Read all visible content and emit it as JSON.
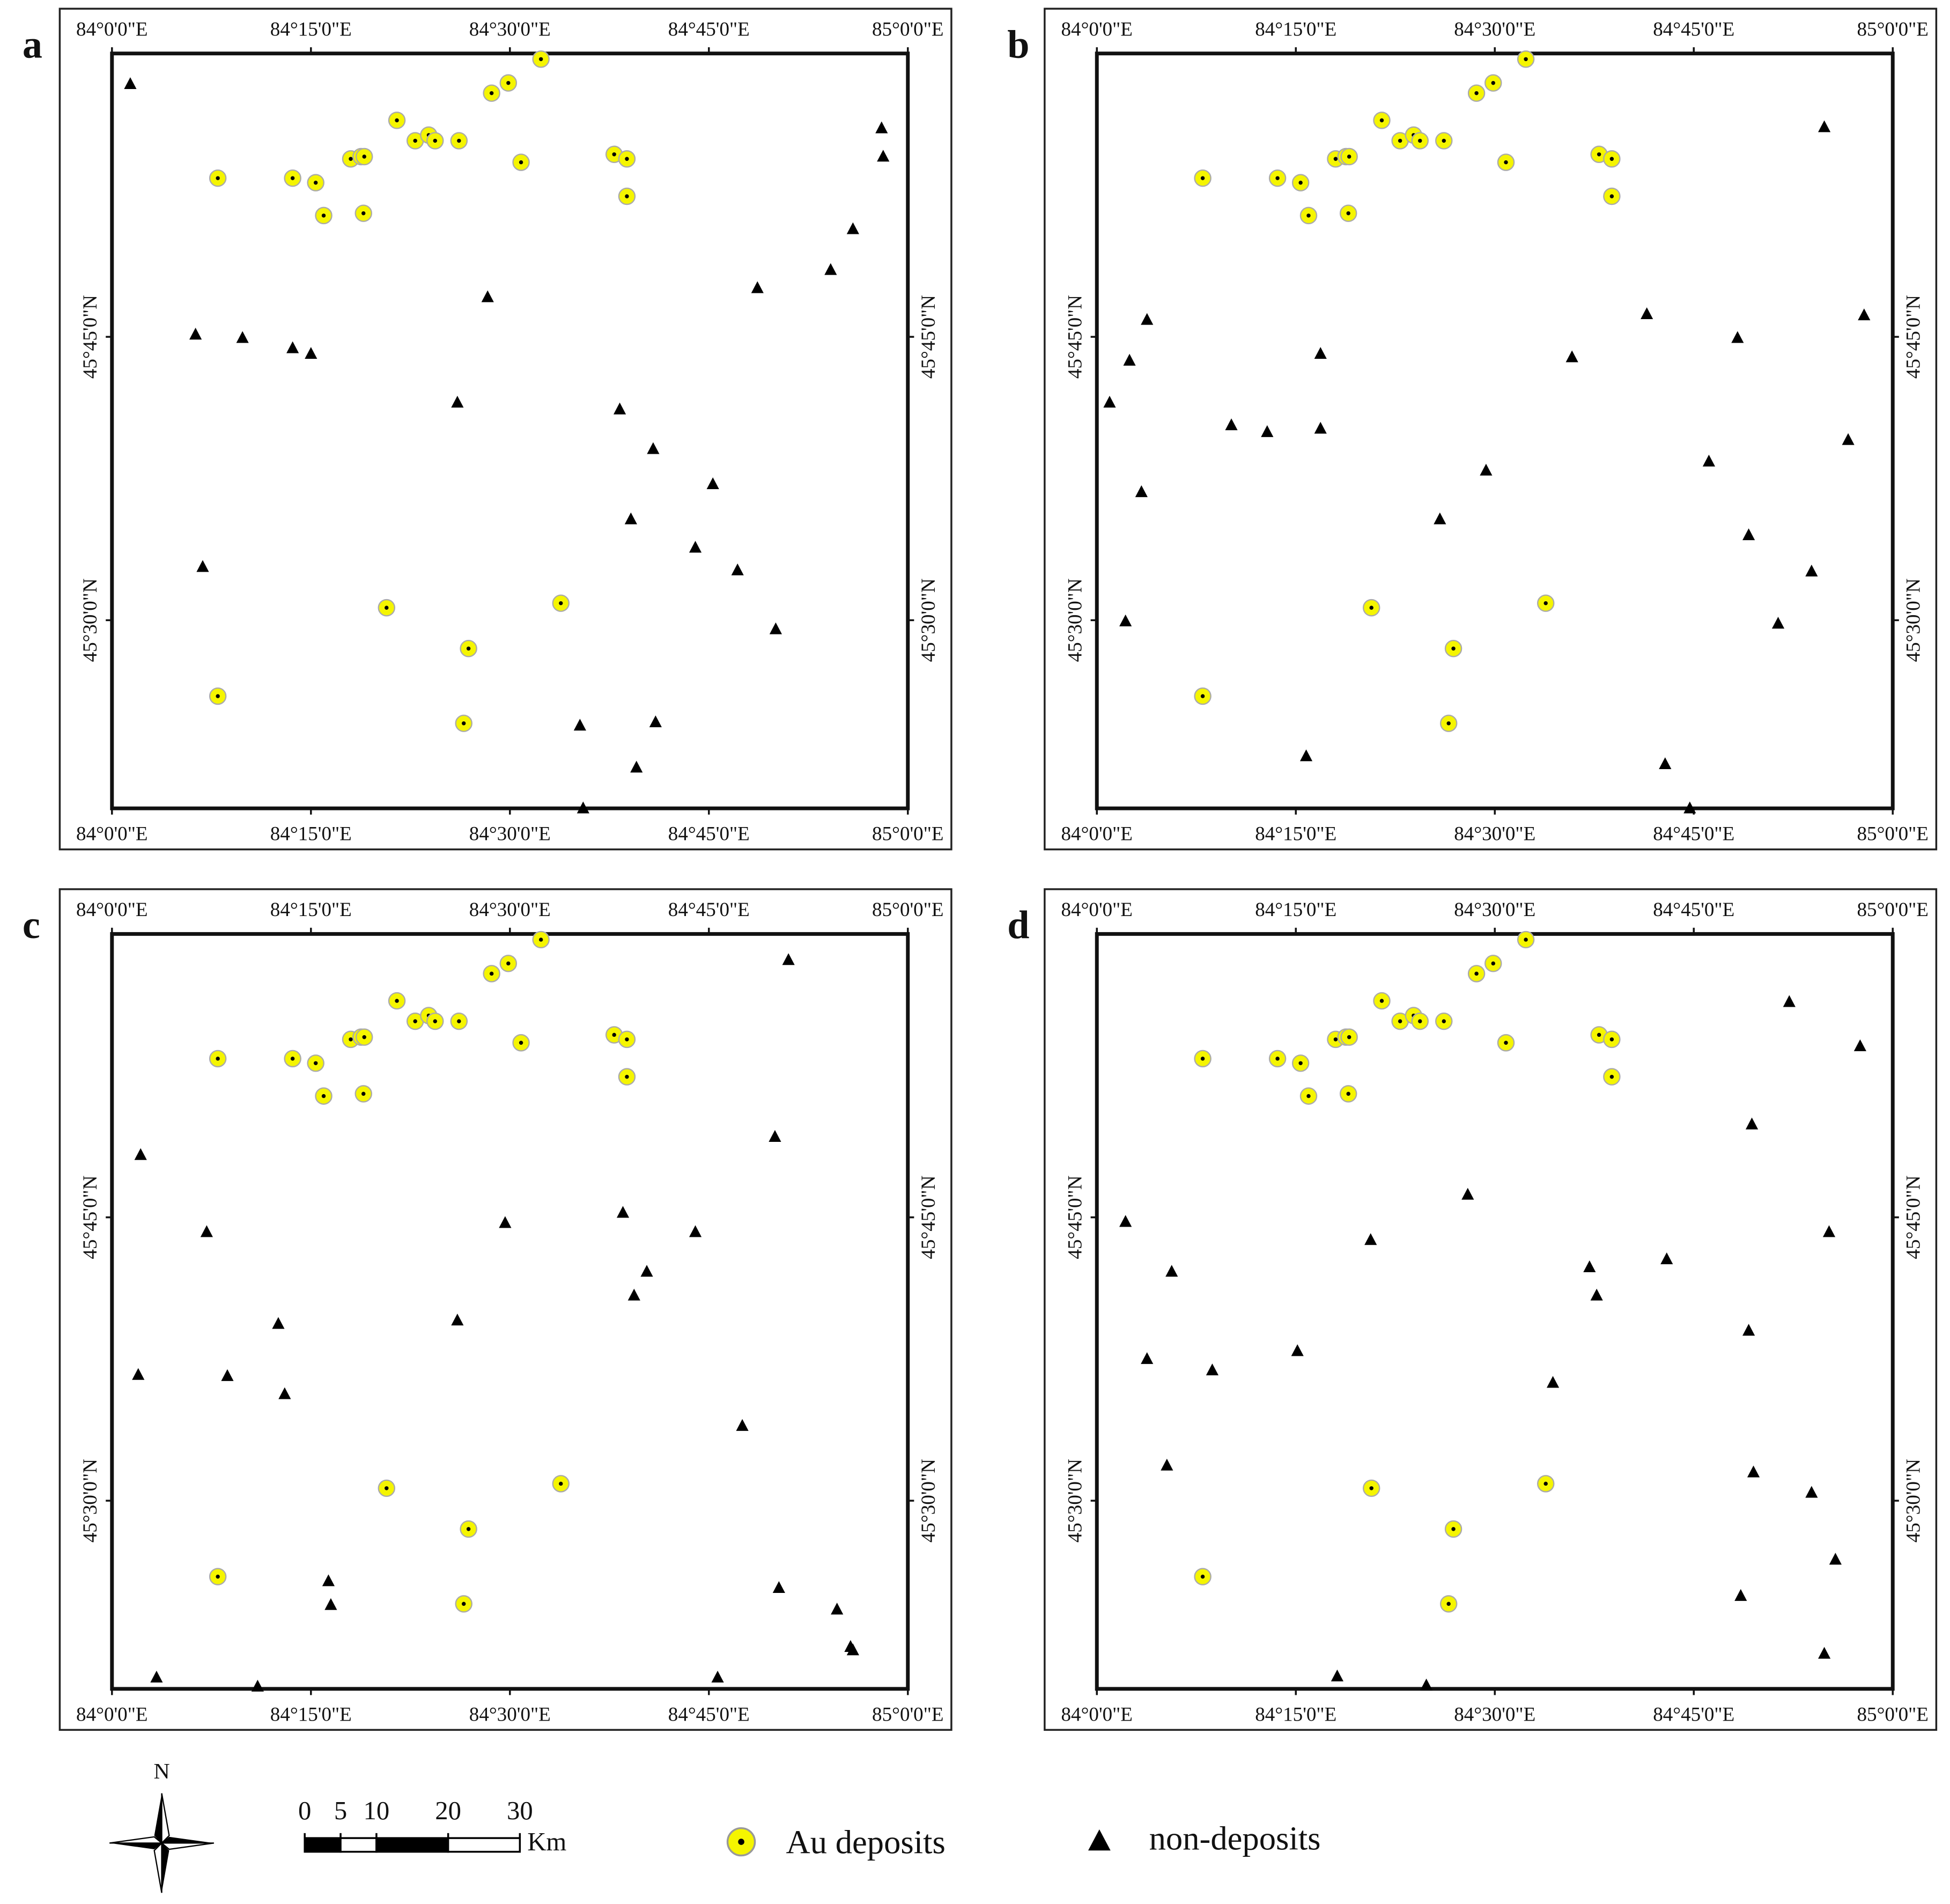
{
  "map": {
    "xlim": [
      84,
      85
    ],
    "ylim": [
      45.334,
      46.0
    ],
    "xticks": [
      {
        "value": 84,
        "label": "84°0'0\"E"
      },
      {
        "value": 84.25,
        "label": "84°15'0\"E"
      },
      {
        "value": 84.5,
        "label": "84°30'0\"E"
      },
      {
        "value": 84.75,
        "label": "84°45'0\"E"
      },
      {
        "value": 85,
        "label": "85°0'0\"E"
      }
    ],
    "yticks": [
      {
        "value": 45.75,
        "label": "45°45'0\"N"
      },
      {
        "value": 45.5,
        "label": "45°30'0\"N"
      }
    ]
  },
  "deposits": [
    [
      84.133,
      45.89
    ],
    [
      84.227,
      45.89
    ],
    [
      84.256,
      45.886
    ],
    [
      84.266,
      45.857
    ],
    [
      84.3,
      45.907
    ],
    [
      84.313,
      45.909
    ],
    [
      84.317,
      45.909
    ],
    [
      84.316,
      45.859
    ],
    [
      84.358,
      45.941
    ],
    [
      84.381,
      45.923
    ],
    [
      84.398,
      45.928
    ],
    [
      84.406,
      45.923
    ],
    [
      84.436,
      45.923
    ],
    [
      84.477,
      45.965
    ],
    [
      84.498,
      45.974
    ],
    [
      84.539,
      45.995
    ],
    [
      84.514,
      45.904
    ],
    [
      84.631,
      45.911
    ],
    [
      84.647,
      45.907
    ],
    [
      84.647,
      45.874
    ],
    [
      84.345,
      45.511
    ],
    [
      84.564,
      45.515
    ],
    [
      84.448,
      45.475
    ],
    [
      84.133,
      45.433
    ],
    [
      84.442,
      45.409
    ]
  ],
  "panels": [
    {
      "label": "a",
      "non_deposits": [
        [
          84.023,
          45.973
        ],
        [
          84.105,
          45.752
        ],
        [
          84.164,
          45.749
        ],
        [
          84.227,
          45.74
        ],
        [
          84.25,
          45.735
        ],
        [
          84.472,
          45.785
        ],
        [
          84.434,
          45.692
        ],
        [
          84.638,
          45.686
        ],
        [
          84.68,
          45.651
        ],
        [
          84.755,
          45.62
        ],
        [
          84.652,
          45.589
        ],
        [
          84.733,
          45.564
        ],
        [
          84.786,
          45.544
        ],
        [
          84.114,
          45.547
        ],
        [
          84.834,
          45.492
        ],
        [
          84.811,
          45.793
        ],
        [
          84.903,
          45.809
        ],
        [
          84.931,
          45.845
        ],
        [
          84.967,
          45.934
        ],
        [
          84.969,
          45.909
        ],
        [
          84.588,
          45.407
        ],
        [
          84.683,
          45.41
        ],
        [
          84.659,
          45.37
        ],
        [
          84.592,
          45.334
        ]
      ]
    },
    {
      "label": "b",
      "non_deposits": [
        [
          84.063,
          45.765
        ],
        [
          84.041,
          45.729
        ],
        [
          84.016,
          45.692
        ],
        [
          84.056,
          45.613
        ],
        [
          84.036,
          45.499
        ],
        [
          84.169,
          45.672
        ],
        [
          84.214,
          45.666
        ],
        [
          84.281,
          45.735
        ],
        [
          84.281,
          45.669
        ],
        [
          84.431,
          45.589
        ],
        [
          84.489,
          45.632
        ],
        [
          84.597,
          45.732
        ],
        [
          84.691,
          45.77
        ],
        [
          84.263,
          45.38
        ],
        [
          84.714,
          45.373
        ],
        [
          84.745,
          45.334
        ],
        [
          84.769,
          45.64
        ],
        [
          84.805,
          45.749
        ],
        [
          84.819,
          45.575
        ],
        [
          84.856,
          45.497
        ],
        [
          84.898,
          45.543
        ],
        [
          84.914,
          45.935
        ],
        [
          84.944,
          45.659
        ],
        [
          84.964,
          45.769
        ]
      ]
    },
    {
      "label": "c",
      "non_deposits": [
        [
          84.036,
          45.805
        ],
        [
          84.119,
          45.737
        ],
        [
          84.033,
          45.611
        ],
        [
          84.145,
          45.61
        ],
        [
          84.209,
          45.656
        ],
        [
          84.217,
          45.594
        ],
        [
          84.056,
          45.344
        ],
        [
          84.183,
          45.336
        ],
        [
          84.272,
          45.429
        ],
        [
          84.275,
          45.408
        ],
        [
          84.434,
          45.659
        ],
        [
          84.494,
          45.745
        ],
        [
          84.642,
          45.754
        ],
        [
          84.672,
          45.702
        ],
        [
          84.656,
          45.681
        ],
        [
          84.733,
          45.737
        ],
        [
          84.792,
          45.566
        ],
        [
          84.761,
          45.344
        ],
        [
          84.833,
          45.821
        ],
        [
          84.85,
          45.977
        ],
        [
          84.838,
          45.423
        ],
        [
          84.911,
          45.404
        ],
        [
          84.928,
          45.371
        ],
        [
          84.931,
          45.368
        ]
      ]
    },
    {
      "label": "d",
      "non_deposits": [
        [
          84.036,
          45.746
        ],
        [
          84.094,
          45.702
        ],
        [
          84.063,
          45.625
        ],
        [
          84.145,
          45.615
        ],
        [
          84.088,
          45.531
        ],
        [
          84.252,
          45.632
        ],
        [
          84.344,
          45.73
        ],
        [
          84.466,
          45.77
        ],
        [
          84.302,
          45.345
        ],
        [
          84.414,
          45.337
        ],
        [
          84.573,
          45.604
        ],
        [
          84.619,
          45.706
        ],
        [
          84.628,
          45.681
        ],
        [
          84.716,
          45.713
        ],
        [
          84.819,
          45.65
        ],
        [
          84.823,
          45.832
        ],
        [
          84.87,
          45.94
        ],
        [
          84.825,
          45.525
        ],
        [
          84.898,
          45.507
        ],
        [
          84.92,
          45.737
        ],
        [
          84.928,
          45.448
        ],
        [
          84.809,
          45.416
        ],
        [
          84.914,
          45.365
        ],
        [
          84.959,
          45.901
        ]
      ]
    }
  ],
  "legend": {
    "north": "N",
    "scale": {
      "ticks": [
        0,
        5,
        10,
        20,
        30
      ],
      "unit": "Km"
    },
    "deposits": "Au deposits",
    "non_deposits": "non-deposits"
  }
}
